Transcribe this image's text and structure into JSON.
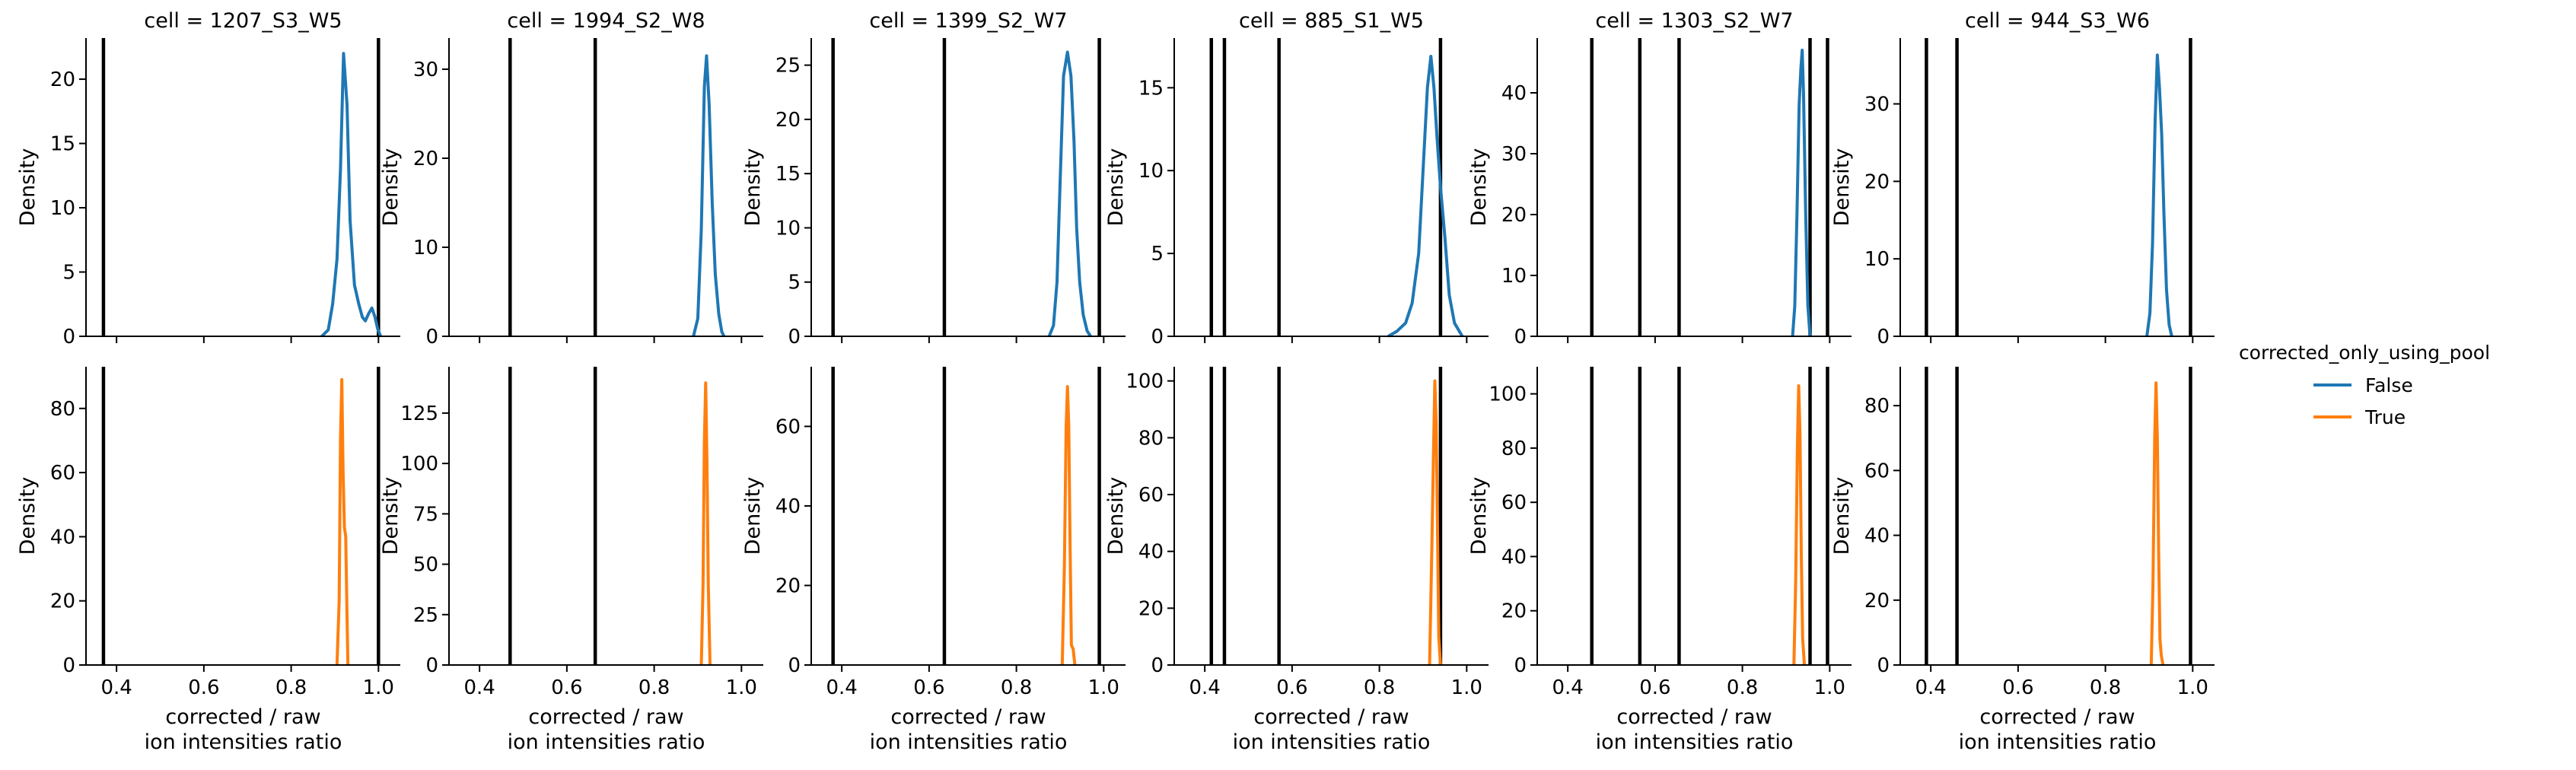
{
  "chart_data": {
    "type": "line",
    "chart_kind": "density (KDE) facet grid",
    "x_tick_values": [
      0.4,
      0.6,
      0.8,
      1.0
    ],
    "x_tick_labels": [
      "0.4",
      "0.6",
      "0.8",
      "1.0"
    ],
    "xlim": [
      0.33,
      1.05
    ],
    "xlabel": "corrected / raw\nion intensities ratio",
    "ylabel": "Density",
    "legend": {
      "title": "corrected_only_using_pool",
      "placement": "right",
      "entries": [
        {
          "label": "False",
          "color": "#1f77b4"
        },
        {
          "label": "True",
          "color": "#ff7f0e"
        }
      ]
    },
    "row_series": [
      "False",
      "True"
    ],
    "series_colors": {
      "False": "#1f77b4",
      "True": "#ff7f0e"
    },
    "vline_color": "#000000",
    "grid": false,
    "facets": [
      {
        "title": "cell = 1207_S3_W5",
        "vlines": [
          0.37,
          1.0
        ],
        "rows": [
          {
            "series": "False",
            "ylim": [
              0,
              23.2
            ],
            "y_ticks": [
              0,
              5,
              10,
              15,
              20
            ],
            "curve": [
              [
                0.87,
                0
              ],
              [
                0.885,
                0.5
              ],
              [
                0.895,
                2.5
              ],
              [
                0.905,
                6
              ],
              [
                0.913,
                13
              ],
              [
                0.92,
                22
              ],
              [
                0.928,
                18
              ],
              [
                0.935,
                9
              ],
              [
                0.945,
                4
              ],
              [
                0.955,
                2.5
              ],
              [
                0.963,
                1.5
              ],
              [
                0.97,
                1.2
              ],
              [
                0.978,
                1.8
              ],
              [
                0.985,
                2.2
              ],
              [
                0.992,
                1.5
              ],
              [
                0.998,
                0.6
              ],
              [
                1.005,
                0
              ]
            ]
          },
          {
            "series": "True",
            "ylim": [
              0,
              93
            ],
            "y_ticks": [
              0,
              20,
              40,
              60,
              80
            ],
            "curve": [
              [
                0.905,
                0
              ],
              [
                0.91,
                20
              ],
              [
                0.913,
                70
              ],
              [
                0.916,
                89
              ],
              [
                0.919,
                60
              ],
              [
                0.922,
                43
              ],
              [
                0.925,
                40
              ],
              [
                0.928,
                15
              ],
              [
                0.93,
                0
              ]
            ]
          }
        ]
      },
      {
        "title": "cell = 1994_S2_W8",
        "vlines": [
          0.47,
          0.665
        ],
        "rows": [
          {
            "series": "False",
            "ylim": [
              0,
              33.5
            ],
            "y_ticks": [
              0,
              10,
              20,
              30
            ],
            "curve": [
              [
                0.89,
                0
              ],
              [
                0.9,
                2
              ],
              [
                0.908,
                12
              ],
              [
                0.915,
                28
              ],
              [
                0.92,
                31.5
              ],
              [
                0.926,
                26
              ],
              [
                0.933,
                15
              ],
              [
                0.94,
                7
              ],
              [
                0.948,
                2.5
              ],
              [
                0.955,
                0.5
              ],
              [
                0.96,
                0
              ]
            ]
          },
          {
            "series": "True",
            "ylim": [
              0,
              148
            ],
            "y_ticks": [
              0,
              25,
              50,
              75,
              100,
              125
            ],
            "curve": [
              [
                0.908,
                0
              ],
              [
                0.912,
                40
              ],
              [
                0.915,
                110
              ],
              [
                0.918,
                140
              ],
              [
                0.921,
                100
              ],
              [
                0.924,
                40
              ],
              [
                0.928,
                0
              ]
            ]
          }
        ]
      },
      {
        "title": "cell = 1399_S2_W7",
        "vlines": [
          0.38,
          0.635,
          0.99
        ],
        "rows": [
          {
            "series": "False",
            "ylim": [
              0,
              27.5
            ],
            "y_ticks": [
              0,
              5,
              10,
              15,
              20,
              25
            ],
            "curve": [
              [
                0.875,
                0
              ],
              [
                0.885,
                1
              ],
              [
                0.893,
                5
              ],
              [
                0.9,
                14
              ],
              [
                0.908,
                24
              ],
              [
                0.917,
                26.2
              ],
              [
                0.925,
                24
              ],
              [
                0.932,
                18
              ],
              [
                0.938,
                10
              ],
              [
                0.945,
                5
              ],
              [
                0.953,
                2
              ],
              [
                0.962,
                0.5
              ],
              [
                0.97,
                0
              ]
            ]
          },
          {
            "series": "True",
            "ylim": [
              0,
              75
            ],
            "y_ticks": [
              0,
              20,
              40,
              60
            ],
            "curve": [
              [
                0.905,
                0
              ],
              [
                0.91,
                25
              ],
              [
                0.914,
                60
              ],
              [
                0.917,
                70
              ],
              [
                0.92,
                60
              ],
              [
                0.923,
                30
              ],
              [
                0.926,
                5
              ],
              [
                0.93,
                4
              ],
              [
                0.934,
                0
              ]
            ]
          }
        ]
      },
      {
        "title": "cell = 885_S1_W5",
        "vlines": [
          0.415,
          0.445,
          0.57,
          0.94
        ],
        "rows": [
          {
            "series": "False",
            "ylim": [
              0,
              18
            ],
            "y_ticks": [
              0,
              5,
              10,
              15
            ],
            "curve": [
              [
                0.82,
                0
              ],
              [
                0.84,
                0.3
              ],
              [
                0.86,
                0.8
              ],
              [
                0.875,
                2
              ],
              [
                0.89,
                5
              ],
              [
                0.9,
                10
              ],
              [
                0.91,
                15
              ],
              [
                0.918,
                16.9
              ],
              [
                0.925,
                15
              ],
              [
                0.932,
                12
              ],
              [
                0.94,
                9
              ],
              [
                0.95,
                6
              ],
              [
                0.96,
                2.5
              ],
              [
                0.972,
                0.8
              ],
              [
                0.99,
                0
              ]
            ]
          },
          {
            "series": "True",
            "ylim": [
              0,
              105
            ],
            "y_ticks": [
              0,
              20,
              40,
              60,
              80,
              100
            ],
            "curve": [
              [
                0.915,
                0
              ],
              [
                0.92,
                40
              ],
              [
                0.924,
                75
              ],
              [
                0.927,
                100
              ],
              [
                0.93,
                85
              ],
              [
                0.933,
                50
              ],
              [
                0.936,
                10
              ],
              [
                0.94,
                0
              ]
            ]
          }
        ]
      },
      {
        "title": "cell = 1303_S2_W7",
        "vlines": [
          0.455,
          0.565,
          0.655,
          0.955,
          0.995
        ],
        "rows": [
          {
            "series": "False",
            "ylim": [
              0,
              49
            ],
            "y_ticks": [
              0,
              10,
              20,
              30,
              40
            ],
            "curve": [
              [
                0.915,
                0
              ],
              [
                0.92,
                5
              ],
              [
                0.925,
                20
              ],
              [
                0.93,
                38
              ],
              [
                0.934,
                44
              ],
              [
                0.937,
                47
              ],
              [
                0.94,
                40
              ],
              [
                0.945,
                20
              ],
              [
                0.95,
                5
              ],
              [
                0.955,
                0
              ]
            ]
          },
          {
            "series": "True",
            "ylim": [
              0,
              110
            ],
            "y_ticks": [
              0,
              20,
              40,
              60,
              80,
              100
            ],
            "curve": [
              [
                0.918,
                0
              ],
              [
                0.922,
                30
              ],
              [
                0.926,
                80
              ],
              [
                0.929,
                103
              ],
              [
                0.932,
                85
              ],
              [
                0.935,
                40
              ],
              [
                0.938,
                10
              ],
              [
                0.942,
                0
              ]
            ]
          }
        ]
      },
      {
        "title": "cell = 944_S3_W6",
        "vlines": [
          0.39,
          0.46,
          0.995
        ],
        "rows": [
          {
            "series": "False",
            "ylim": [
              0,
              38.5
            ],
            "y_ticks": [
              0,
              10,
              20,
              30
            ],
            "curve": [
              [
                0.895,
                0
              ],
              [
                0.902,
                3
              ],
              [
                0.908,
                12
              ],
              [
                0.914,
                28
              ],
              [
                0.919,
                36.3
              ],
              [
                0.924,
                32
              ],
              [
                0.929,
                26
              ],
              [
                0.934,
                16
              ],
              [
                0.94,
                6
              ],
              [
                0.946,
                1.5
              ],
              [
                0.952,
                0
              ]
            ]
          },
          {
            "series": "True",
            "ylim": [
              0,
              92
            ],
            "y_ticks": [
              0,
              20,
              40,
              60,
              80
            ],
            "curve": [
              [
                0.905,
                0
              ],
              [
                0.909,
                25
              ],
              [
                0.913,
                70
              ],
              [
                0.916,
                87
              ],
              [
                0.919,
                70
              ],
              [
                0.922,
                35
              ],
              [
                0.925,
                8
              ],
              [
                0.928,
                3
              ],
              [
                0.932,
                0
              ]
            ]
          }
        ]
      }
    ]
  }
}
